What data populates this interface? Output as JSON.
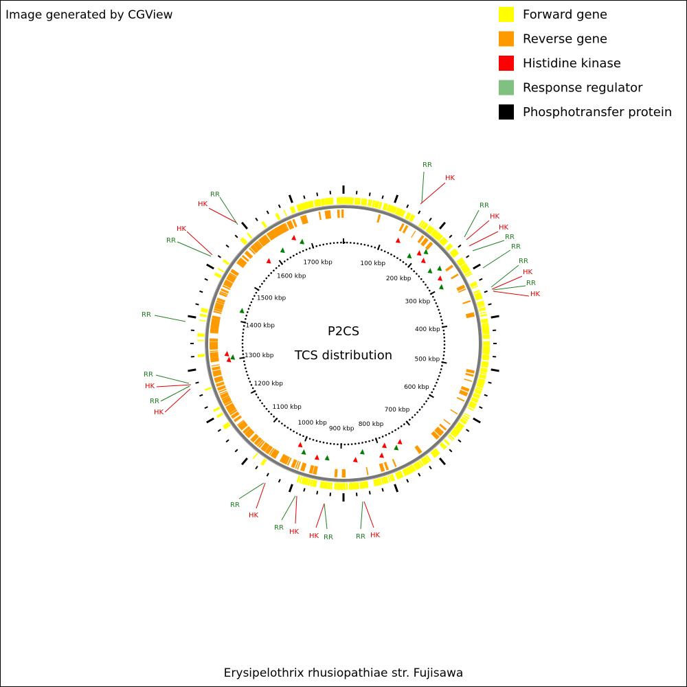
{
  "header": "Image generated by CGView",
  "legend": [
    {
      "label": "Forward gene",
      "color": "#ffff00"
    },
    {
      "label": "Reverse gene",
      "color": "#ff9900"
    },
    {
      "label": "Histidine kinase",
      "color": "#ff0000"
    },
    {
      "label": "Response regulator",
      "color": "#80c080"
    },
    {
      "label": "Phosphotransfer protein",
      "color": "#000000"
    }
  ],
  "center": [
    "P2CS",
    "TCS distribution"
  ],
  "ruler": [
    "100 kbp",
    "200 kbp",
    "300 kbp",
    "400 kbp",
    "500 kbp",
    "600 kbp",
    "700 kbp",
    "800 kbp",
    "900 kbp",
    "1000 kbp",
    "1100 kbp",
    "1200 kbp",
    "1300 kbp",
    "1400 kbp",
    "1500 kbp",
    "1600 kbp",
    "1700 kbp"
  ],
  "feature_colors": {
    "RR": "#1f7f1f",
    "HK": "#e00000"
  },
  "features": [
    "RR",
    "HK",
    "RR",
    "HK",
    "HK",
    "RR",
    "RR",
    "RR",
    "HK",
    "RR",
    "HK",
    "RR",
    "HK",
    "RR",
    "HK",
    "HK",
    "RR",
    "HK",
    "RR",
    "HK",
    "RR",
    "HK",
    "RR",
    "RR",
    "RR",
    "HK",
    "HK",
    "RR"
  ],
  "footer": "Erysipelothrix rhusiopathiae str. Fujisawa"
}
